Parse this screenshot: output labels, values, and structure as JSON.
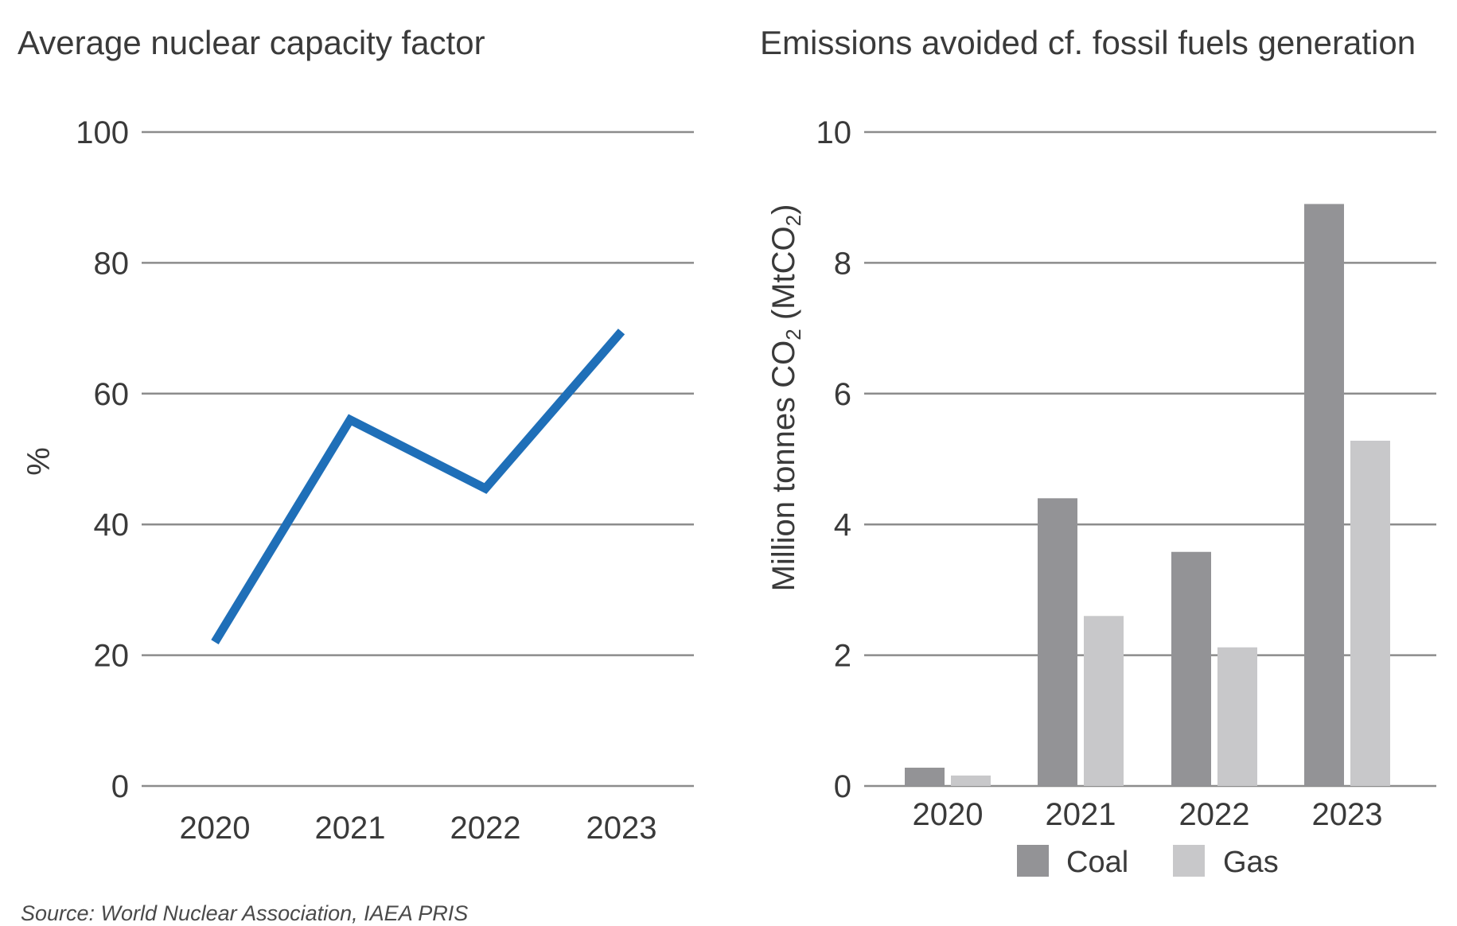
{
  "chart_data": [
    {
      "type": "line",
      "title": "Average nuclear capacity factor",
      "ylabel": "%",
      "xlabel": "",
      "ylim": [
        0,
        100
      ],
      "yticks": [
        0,
        20,
        40,
        60,
        80,
        100
      ],
      "grid": true,
      "categories": [
        "2020",
        "2021",
        "2022",
        "2023"
      ],
      "series": [
        {
          "values": [
            22,
            56,
            45.5,
            69.5
          ],
          "color": "#1f6fb8"
        }
      ]
    },
    {
      "type": "bar",
      "title": "Emissions avoided cf. fossil fuels generation",
      "ylabel_main": "Million tonnes CO",
      "ylabel_sub1": "2",
      "ylabel_mid": " (MtCO",
      "ylabel_sub2": "2",
      "ylabel_end": ")",
      "xlabel": "",
      "ylim": [
        0,
        10
      ],
      "yticks": [
        0,
        2,
        4,
        6,
        8,
        10
      ],
      "grid": true,
      "legend_position": "bottom",
      "categories": [
        "2020",
        "2021",
        "2022",
        "2023"
      ],
      "series": [
        {
          "name": "Coal",
          "values": [
            0.28,
            4.4,
            3.58,
            8.9
          ],
          "color": "#939396"
        },
        {
          "name": "Gas",
          "values": [
            0.16,
            2.6,
            2.12,
            5.28
          ],
          "color": "#c8c8ca"
        }
      ]
    }
  ],
  "source": "Source: World Nuclear Association, IAEA PRIS"
}
